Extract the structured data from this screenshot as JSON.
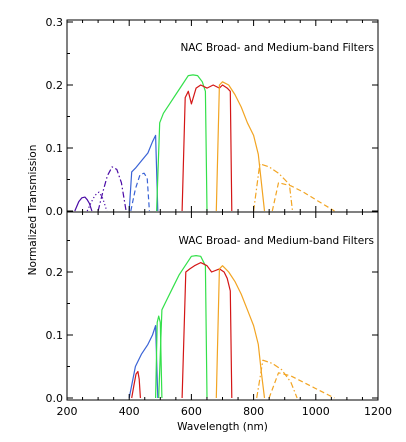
{
  "chart_data": {
    "type": "line",
    "xlabel": "Wavelength (nm)",
    "ylabel": "Normalized Transmission",
    "xlim": [
      200,
      1200
    ],
    "x_ticks": [
      "200",
      "400",
      "600",
      "800",
      "1000",
      "1200"
    ],
    "colors": {
      "violet": "#4a0aa6",
      "blue": "#3a63d6",
      "green": "#33e04a",
      "red": "#d41616",
      "orange": "#f2a422"
    },
    "panels": [
      {
        "title": "NAC Broad- and Medium-band Filters",
        "ylim": [
          0,
          0.3
        ],
        "y_ticks": [
          "0.0",
          "0.1",
          "0.2",
          "0.3"
        ],
        "series": [
          {
            "color": "violet",
            "dash": "solid",
            "x": [
              225,
              238,
              248,
              258,
              265,
              272,
              280
            ],
            "y": [
              0,
              0.015,
              0.021,
              0.022,
              0.018,
              0.012,
              0
            ]
          },
          {
            "color": "violet",
            "dash": "dot",
            "x": [
              265,
              278,
              290,
              303,
              315,
              328
            ],
            "y": [
              0,
              0.014,
              0.025,
              0.03,
              0.02,
              0
            ]
          },
          {
            "color": "violet",
            "dash": "dashdot",
            "x": [
              300,
              315,
              330,
              345,
              360,
              375,
              390
            ],
            "y": [
              0,
              0.03,
              0.056,
              0.07,
              0.066,
              0.045,
              0
            ]
          },
          {
            "color": "blue",
            "dash": "dash",
            "x": [
              405,
              420,
              435,
              448,
              458,
              465
            ],
            "y": [
              0,
              0.035,
              0.058,
              0.06,
              0.052,
              0
            ]
          },
          {
            "color": "blue",
            "dash": "solid",
            "x": [
              400,
              408,
              420,
              440,
              460,
              475,
              485,
              492
            ],
            "y": [
              0,
              0.062,
              0.068,
              0.08,
              0.092,
              0.11,
              0.12,
              0
            ]
          },
          {
            "color": "green",
            "dash": "solid",
            "x": [
              488,
              498,
              510,
              530,
              550,
              570,
              590,
              605,
              620,
              635,
              645,
              650
            ],
            "y": [
              0,
              0.14,
              0.155,
              0.17,
              0.185,
              0.2,
              0.215,
              0.216,
              0.215,
              0.205,
              0.19,
              0
            ]
          },
          {
            "color": "red",
            "dash": "solid",
            "x": [
              570,
              580,
              590,
              600,
              615,
              630,
              650,
              670,
              690,
              700,
              715,
              725,
              730
            ],
            "y": [
              0,
              0.18,
              0.19,
              0.17,
              0.195,
              0.2,
              0.195,
              0.2,
              0.195,
              0.2,
              0.195,
              0.19,
              0
            ]
          },
          {
            "color": "orange",
            "dash": "solid",
            "x": [
              680,
              690,
              700,
              720,
              740,
              760,
              780,
              800,
              815,
              825,
              835
            ],
            "y": [
              0,
              0.2,
              0.205,
              0.2,
              0.185,
              0.165,
              0.14,
              0.12,
              0.09,
              0.045,
              0
            ]
          },
          {
            "color": "orange",
            "dash": "dashdot",
            "x": [
              800,
              820,
              850,
              880,
              900,
              915,
              925
            ],
            "y": [
              0,
              0.075,
              0.07,
              0.06,
              0.05,
              0.042,
              0
            ]
          },
          {
            "color": "orange",
            "dash": "dash",
            "x": [
              860,
              880,
              920,
              960,
              1000,
              1040,
              1060
            ],
            "y": [
              0,
              0.045,
              0.04,
              0.03,
              0.018,
              0.006,
              0
            ]
          }
        ]
      },
      {
        "title": "WAC Broad- and Medium-band Filters",
        "ylim": [
          0,
          0.3
        ],
        "y_ticks": [
          "0.0",
          "0.1",
          "0.2"
        ],
        "series": [
          {
            "color": "red",
            "dash": "solid",
            "x": [
              408,
              415,
              422,
              428,
              432,
              436
            ],
            "y": [
              0,
              0.02,
              0.038,
              0.042,
              0.03,
              0
            ]
          },
          {
            "color": "blue",
            "dash": "solid",
            "x": [
              400,
              410,
              420,
              440,
              460,
              475,
              485,
              492
            ],
            "y": [
              0,
              0.025,
              0.05,
              0.07,
              0.085,
              0.1,
              0.115,
              0
            ]
          },
          {
            "color": "green",
            "dash": "solid",
            "x": [
              485,
              490,
              495,
              500,
              505
            ],
            "y": [
              0,
              0.12,
              0.13,
              0.12,
              0
            ]
          },
          {
            "color": "green",
            "dash": "solid",
            "x": [
              495,
              505,
              520,
              540,
              560,
              580,
              600,
              615,
              630,
              645,
              650
            ],
            "y": [
              0,
              0.14,
              0.155,
              0.175,
              0.195,
              0.21,
              0.225,
              0.226,
              0.225,
              0.21,
              0
            ]
          },
          {
            "color": "red",
            "dash": "solid",
            "x": [
              570,
              582,
              595,
              610,
              630,
              650,
              665,
              690,
              705,
              715,
              725,
              730
            ],
            "y": [
              0,
              0.2,
              0.205,
              0.21,
              0.215,
              0.21,
              0.2,
              0.205,
              0.2,
              0.19,
              0.17,
              0
            ]
          },
          {
            "color": "orange",
            "dash": "solid",
            "x": [
              680,
              690,
              700,
              720,
              740,
              760,
              780,
              800,
              815,
              825,
              835
            ],
            "y": [
              0,
              0.205,
              0.21,
              0.2,
              0.185,
              0.165,
              0.14,
              0.115,
              0.085,
              0.04,
              0
            ]
          },
          {
            "color": "orange",
            "dash": "dashdot",
            "x": [
              810,
              830,
              860,
              890,
              920,
              940
            ],
            "y": [
              0,
              0.06,
              0.055,
              0.045,
              0.025,
              0
            ]
          },
          {
            "color": "orange",
            "dash": "dash",
            "x": [
              850,
              880,
              920,
              960,
              1000,
              1040,
              1060
            ],
            "y": [
              0,
              0.04,
              0.035,
              0.025,
              0.015,
              0.005,
              0
            ]
          }
        ]
      }
    ]
  }
}
